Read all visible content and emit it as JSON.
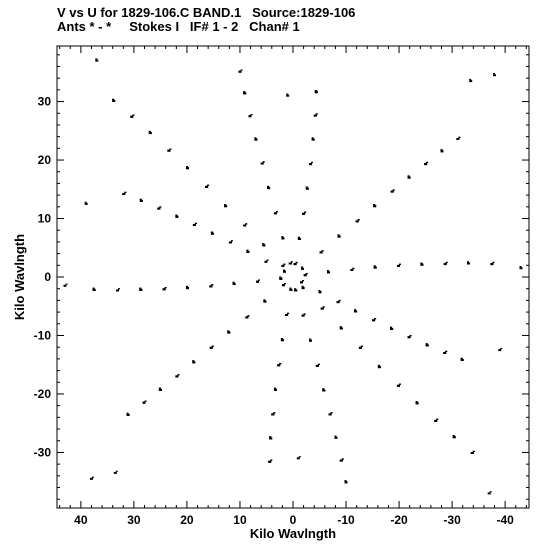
{
  "header": {
    "line1": "V vs U for 1829-106.C BAND.1   Source:1829-106",
    "line2": "Ants * - *     Stokes I   IF# 1 - 2   Chan# 1"
  },
  "chart_data": {
    "type": "scatter",
    "title": "V vs U for 1829-106.C BAND.1   Source:1829-106",
    "subtitle": "Ants * - *     Stokes I   IF# 1 - 2   Chan# 1",
    "xlabel": "Kilo Wavlngth",
    "ylabel": "Kilo Wavlngth",
    "xlim": [
      44.5,
      -44.5
    ],
    "ylim": [
      -39.5,
      39.5
    ],
    "x_reversed": true,
    "grid": false,
    "legend": "none",
    "marker_color": "#000000",
    "x_ticks": [
      40,
      30,
      20,
      10,
      0,
      -10,
      -20,
      -30,
      -40
    ],
    "y_ticks": [
      30,
      20,
      10,
      0,
      -10,
      -20,
      -30
    ],
    "arms": [
      {
        "points": [
          [
            -1.9,
            -1.9
          ],
          [
            -5.5,
            -5.4
          ],
          [
            -9.1,
            -8.8
          ],
          [
            -12.7,
            -12.1
          ],
          [
            -16.3,
            -15.4
          ],
          [
            -19.9,
            -18.6
          ],
          [
            -23.4,
            -21.6
          ],
          [
            -26.9,
            -24.6
          ],
          [
            -30.4,
            -27.4
          ],
          [
            -33.8,
            -30.1
          ]
        ]
      },
      {
        "points": [
          [
            -1.6,
            -0.9
          ],
          [
            -5.1,
            -2.6
          ],
          [
            -8.5,
            -4.3
          ],
          [
            -11.8,
            -5.9
          ],
          [
            -15.2,
            -7.4
          ],
          [
            -18.6,
            -8.9
          ],
          [
            -21.9,
            -10.3
          ],
          [
            -25.3,
            -11.7
          ],
          [
            -28.6,
            -13.0
          ],
          [
            -31.9,
            -14.2
          ]
        ]
      },
      {
        "points": [
          [
            -0.5,
            -2.3
          ],
          [
            -1.9,
            -6.6
          ],
          [
            -3.3,
            -10.9
          ],
          [
            -4.6,
            -15.2
          ],
          [
            -5.8,
            -19.4
          ],
          [
            -7.0,
            -23.5
          ],
          [
            -8.1,
            -27.5
          ],
          [
            -9.1,
            -31.4
          ],
          [
            -10.0,
            -35.1
          ]
        ]
      },
      {
        "points": [
          [
            -2.3,
            0.3
          ],
          [
            -6.7,
            0.8
          ],
          [
            -11.1,
            1.2
          ],
          [
            -15.5,
            1.6
          ],
          [
            -19.9,
            1.9
          ],
          [
            -24.3,
            2.1
          ],
          [
            -28.7,
            2.2
          ],
          [
            -33.1,
            2.3
          ],
          [
            -37.5,
            2.2
          ]
        ]
      },
      {
        "points": [
          [
            0.4,
            -2.2
          ],
          [
            1.2,
            -6.5
          ],
          [
            2.0,
            -10.8
          ],
          [
            2.7,
            -15.1
          ],
          [
            3.3,
            -19.3
          ],
          [
            3.8,
            -23.5
          ],
          [
            4.2,
            -27.6
          ],
          [
            4.4,
            -31.6
          ]
        ]
      },
      {
        "points": [
          [
            1.9,
            1.9
          ],
          [
            5.5,
            5.4
          ],
          [
            9.1,
            8.8
          ],
          [
            12.7,
            12.1
          ],
          [
            16.3,
            15.4
          ],
          [
            19.9,
            18.6
          ],
          [
            23.4,
            21.6
          ],
          [
            26.9,
            24.6
          ],
          [
            30.4,
            27.4
          ],
          [
            33.8,
            30.1
          ]
        ]
      },
      {
        "points": [
          [
            1.6,
            0.9
          ],
          [
            5.1,
            2.6
          ],
          [
            8.5,
            4.3
          ],
          [
            11.8,
            5.9
          ],
          [
            15.2,
            7.4
          ],
          [
            18.6,
            8.9
          ],
          [
            21.9,
            10.3
          ],
          [
            25.3,
            11.7
          ],
          [
            28.6,
            13.0
          ],
          [
            31.9,
            14.2
          ]
        ]
      },
      {
        "points": [
          [
            0.5,
            2.3
          ],
          [
            1.9,
            6.6
          ],
          [
            3.3,
            10.9
          ],
          [
            4.6,
            15.2
          ],
          [
            5.8,
            19.4
          ],
          [
            7.0,
            23.5
          ],
          [
            8.1,
            27.5
          ],
          [
            9.1,
            31.4
          ],
          [
            10.0,
            35.1
          ]
        ]
      },
      {
        "points": [
          [
            2.3,
            -0.3
          ],
          [
            6.7,
            -0.8
          ],
          [
            11.1,
            -1.2
          ],
          [
            15.5,
            -1.6
          ],
          [
            19.9,
            -1.9
          ],
          [
            24.3,
            -2.1
          ],
          [
            28.7,
            -2.2
          ],
          [
            33.1,
            -2.3
          ],
          [
            37.5,
            -2.2
          ]
        ]
      },
      {
        "points": [
          [
            -0.4,
            2.2
          ],
          [
            -1.2,
            6.5
          ],
          [
            -2.0,
            10.8
          ],
          [
            -2.7,
            15.1
          ],
          [
            -3.3,
            19.3
          ],
          [
            -3.8,
            23.5
          ],
          [
            -4.2,
            27.6
          ],
          [
            -4.4,
            31.6
          ]
        ]
      },
      {
        "points": [
          [
            -1.8,
            1.4
          ],
          [
            -5.3,
            4.2
          ],
          [
            -8.7,
            6.9
          ],
          [
            -12.1,
            9.5
          ],
          [
            -15.4,
            12.1
          ],
          [
            -18.7,
            14.6
          ],
          [
            -21.9,
            17.0
          ],
          [
            -25.0,
            19.3
          ],
          [
            -28.1,
            21.5
          ],
          [
            -31.1,
            23.6
          ]
        ]
      },
      {
        "points": [
          [
            1.8,
            -1.4
          ],
          [
            5.3,
            -4.2
          ],
          [
            8.7,
            -6.9
          ],
          [
            12.1,
            -9.5
          ],
          [
            15.4,
            -12.1
          ],
          [
            18.7,
            -14.6
          ],
          [
            21.9,
            -17.0
          ],
          [
            25.0,
            -19.3
          ],
          [
            28.1,
            -21.5
          ],
          [
            31.1,
            -23.6
          ]
        ]
      }
    ],
    "extreme_points": [
      [
        37,
        37
      ],
      [
        -37,
        -37
      ],
      [
        -38,
        34.5
      ],
      [
        38,
        -34.5
      ],
      [
        39,
        12.5
      ],
      [
        -39,
        -12.5
      ],
      [
        -43,
        1.5
      ],
      [
        43,
        -1.5
      ],
      [
        1,
        31
      ],
      [
        -1,
        -31
      ],
      [
        -33.5,
        33.5
      ],
      [
        33.5,
        -33.5
      ]
    ]
  }
}
